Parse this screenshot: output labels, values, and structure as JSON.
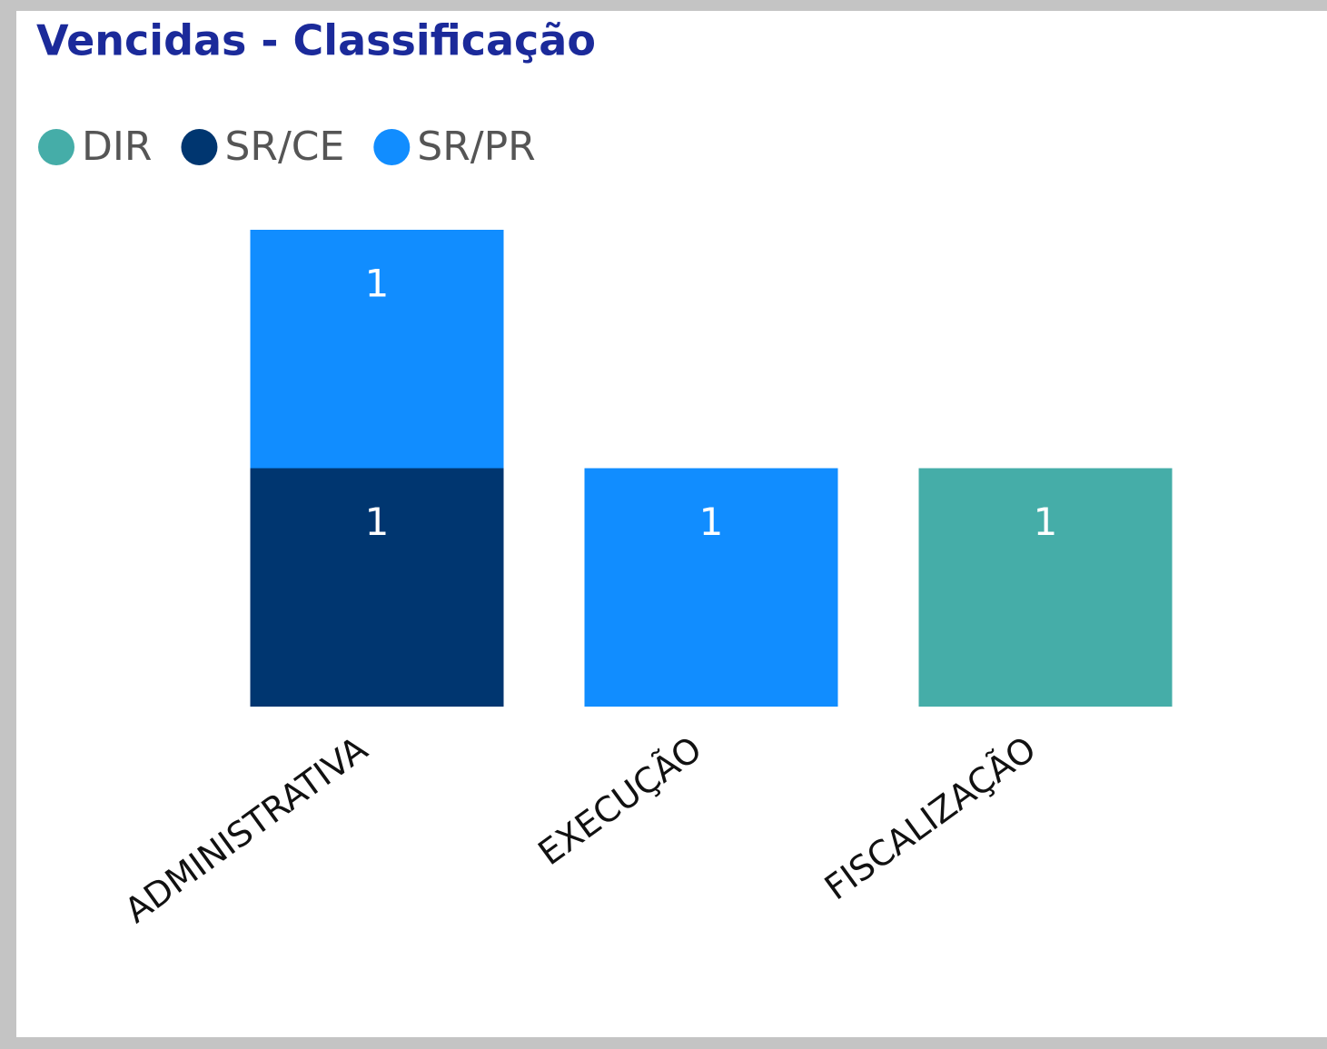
{
  "chart_data": {
    "type": "stacked_bar",
    "title": "Vencidas - Classificação",
    "categories": [
      "ADMINISTRATIVA",
      "EXECUÇÃO",
      "FISCALIZAÇÃO"
    ],
    "series": [
      {
        "name": "DIR",
        "color": "#45ada8",
        "values": [
          null,
          null,
          1
        ]
      },
      {
        "name": "SR/CE",
        "color": "#003670",
        "values": [
          1,
          null,
          null
        ]
      },
      {
        "name": "SR/PR",
        "color": "#118dff",
        "values": [
          1,
          1,
          null
        ]
      }
    ]
  }
}
